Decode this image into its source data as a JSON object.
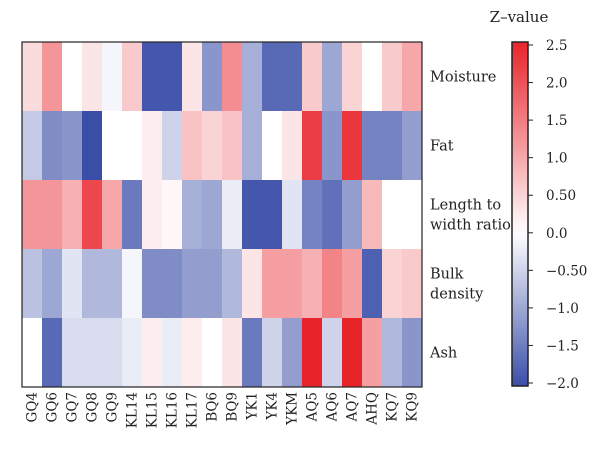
{
  "chart_data": {
    "type": "heatmap",
    "title": "",
    "xlabel": "",
    "ylabel": "",
    "columns": [
      "GQ4",
      "GQ6",
      "GQ7",
      "GQ8",
      "GQ9",
      "KL14",
      "KL15",
      "KL16",
      "KL17",
      "BQ6",
      "BQ9",
      "YK1",
      "YK4",
      "YKM",
      "AQ5",
      "AQ6",
      "AQ7",
      "AHQ",
      "KQ7",
      "KQ9"
    ],
    "rows": [
      "Moisture",
      "Fat",
      "Length to width ratio",
      "Bulk density",
      "Ash"
    ],
    "row_labels": [
      [
        "Moisture"
      ],
      [
        "Fat"
      ],
      [
        "Length to",
        "width ratio"
      ],
      [
        "Bulk",
        "density"
      ],
      [
        "Ash"
      ]
    ],
    "values": [
      [
        0.4,
        1.2,
        0.0,
        0.3,
        -0.1,
        0.6,
        -1.9,
        -1.9,
        0.3,
        -1.2,
        1.3,
        -0.9,
        -1.7,
        -1.7,
        0.6,
        -1.0,
        0.5,
        0.0,
        0.6,
        1.0
      ],
      [
        -0.6,
        -1.3,
        -1.2,
        -2.0,
        0.0,
        0.0,
        0.2,
        -0.5,
        0.7,
        0.5,
        0.7,
        -0.9,
        0.0,
        0.3,
        2.2,
        -1.2,
        2.3,
        -1.4,
        -1.4,
        -1.1
      ],
      [
        1.2,
        1.2,
        0.9,
        2.1,
        1.0,
        -1.5,
        0.2,
        0.1,
        -0.9,
        -1.0,
        -0.2,
        -1.9,
        -1.9,
        -0.3,
        -1.4,
        -1.6,
        -1.1,
        0.8,
        0.0,
        0.0
      ],
      [
        -0.7,
        -1.0,
        -0.3,
        -0.8,
        -0.8,
        -0.1,
        -1.3,
        -1.3,
        -1.1,
        -1.1,
        -0.8,
        0.3,
        1.1,
        1.1,
        0.9,
        1.4,
        1.1,
        -1.8,
        0.5,
        0.6
      ],
      [
        0.0,
        -1.7,
        -0.4,
        -0.4,
        -0.4,
        -0.2,
        0.2,
        -0.2,
        0.2,
        0.0,
        0.3,
        -1.5,
        -0.5,
        -1.1,
        2.5,
        -0.5,
        2.5,
        1.1,
        -0.8,
        -1.2
      ]
    ],
    "colorbar": {
      "label": "Z–value",
      "min": -2.0,
      "max": 2.5,
      "ticks": [
        "2.5",
        "2.0",
        "1.5",
        "1.0",
        "0.50",
        "0.0",
        "−0.50",
        "−1.0",
        "−1.5",
        "−2.0"
      ],
      "tick_values": [
        2.5,
        2.0,
        1.5,
        1.0,
        0.5,
        0.0,
        -0.5,
        -1.0,
        -1.5,
        -2.0
      ],
      "colors": {
        "low": "#3a4ea8",
        "mid": "#ffffff",
        "high": "#e8242b"
      }
    },
    "grid": false,
    "legend": "right"
  }
}
